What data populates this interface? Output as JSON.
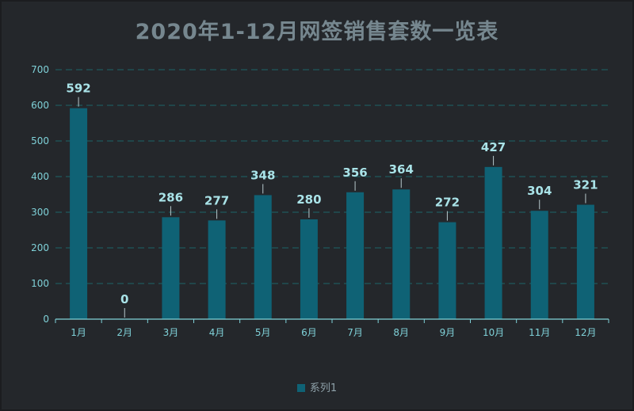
{
  "colors": {
    "background": "#24272b",
    "bar": "#0f6275",
    "grid": "#1e5a5c",
    "axis_text": "#7fd1d8",
    "label_text": "#a9e3e8",
    "title": "#76878f"
  },
  "chart_data": {
    "type": "bar",
    "title": "2020年1-12月网签销售套数一览表",
    "categories": [
      "1月",
      "2月",
      "3月",
      "4月",
      "5月",
      "6月",
      "7月",
      "8月",
      "9月",
      "10月",
      "11月",
      "12月"
    ],
    "series": [
      {
        "name": "系列1",
        "values": [
          592,
          0,
          286,
          277,
          348,
          280,
          356,
          364,
          272,
          427,
          304,
          321
        ]
      }
    ],
    "ylim": [
      0,
      700
    ],
    "yticks": [
      0,
      100,
      200,
      300,
      400,
      500,
      600,
      700
    ],
    "grid": true,
    "legend_position": "bottom-center"
  }
}
